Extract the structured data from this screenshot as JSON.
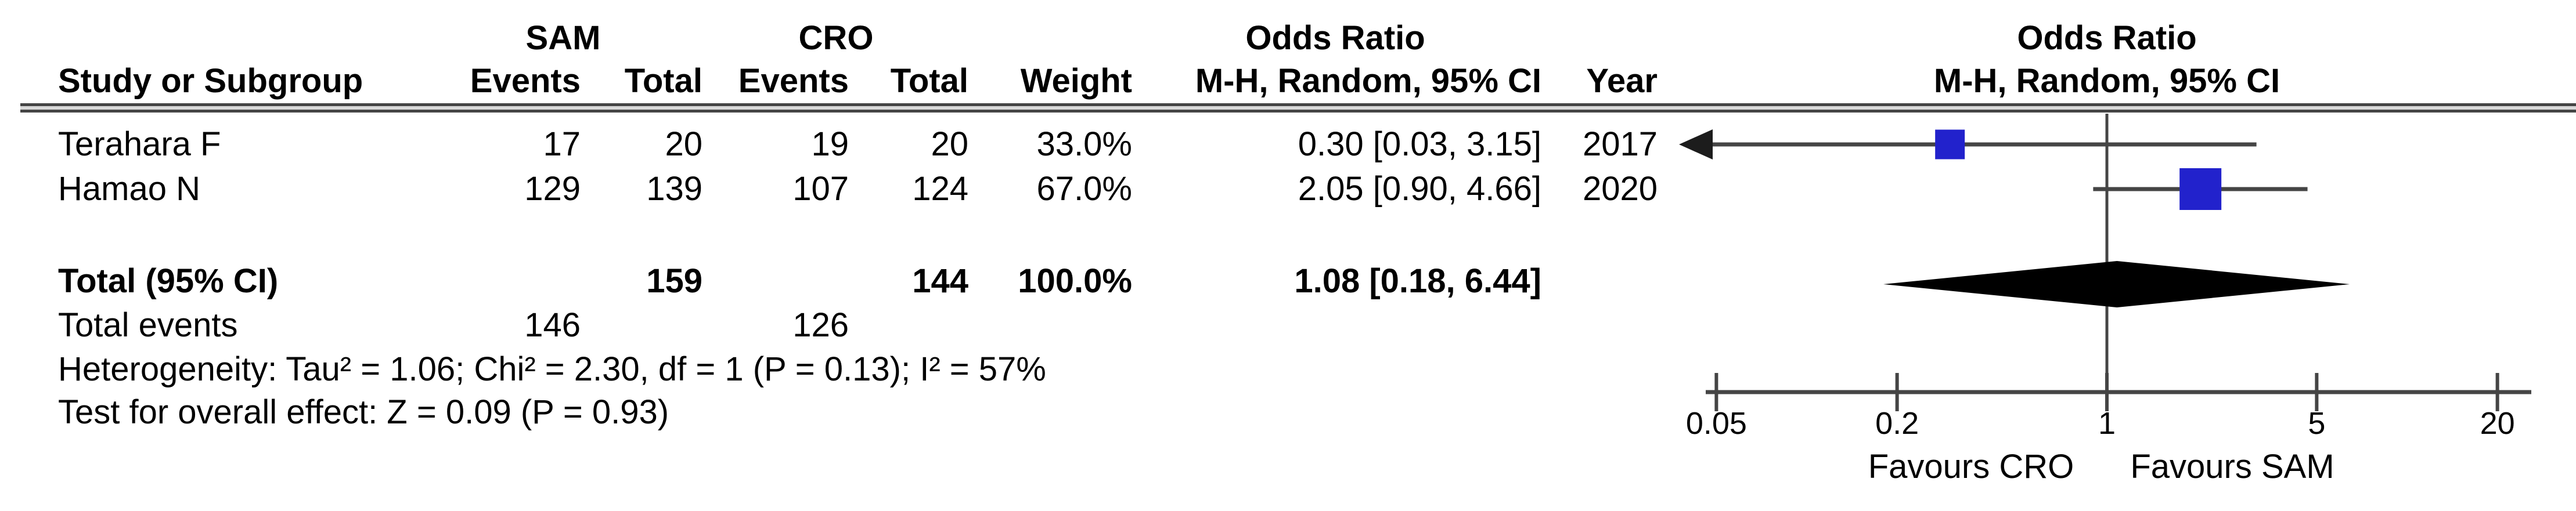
{
  "table": {
    "group_headers": {
      "group1": "SAM",
      "group2": "CRO",
      "or_col": "Odds Ratio",
      "plot_col": "Odds Ratio"
    },
    "column_headers": {
      "study": "Study or Subgroup",
      "events1": "Events",
      "total1": "Total",
      "events2": "Events",
      "total2": "Total",
      "weight": "Weight",
      "mh_ci": "M-H, Random, 95% CI",
      "year": "Year",
      "plot_mh_ci": "M-H, Random, 95% CI"
    },
    "rows": [
      {
        "study": "Terahara F",
        "e1": "17",
        "t1": "20",
        "e2": "19",
        "t2": "20",
        "weight": "33.0%",
        "or_ci": "0.30 [0.03, 3.15]",
        "year": "2017"
      },
      {
        "study": "Hamao N",
        "e1": "129",
        "t1": "139",
        "e2": "107",
        "t2": "124",
        "weight": "67.0%",
        "or_ci": "2.05 [0.90, 4.66]",
        "year": "2020"
      }
    ],
    "total_row": {
      "label": "Total (95% CI)",
      "t1": "159",
      "t2": "144",
      "weight": "100.0%",
      "or_ci": "1.08 [0.18, 6.44]"
    },
    "total_events_row": {
      "label": "Total events",
      "e1": "146",
      "e2": "126"
    },
    "heterogeneity": "Heterogeneity: Tau² = 1.06; Chi² = 2.30, df = 1 (P = 0.13); I² = 57%",
    "overall_effect": "Test for overall effect: Z = 0.09 (P = 0.93)"
  },
  "chart_data": {
    "type": "scatter",
    "subtype": "forest-plot",
    "effect_measure": "Odds Ratio, M-H, Random, 95% CI",
    "x_scale": "log",
    "axis_ticks": [
      0.05,
      0.2,
      1,
      5,
      20
    ],
    "axis_tick_labels": [
      "0.05",
      "0.2",
      "1",
      "5",
      "20"
    ],
    "axis_range": [
      0.05,
      22
    ],
    "null_line": 1,
    "studies": [
      {
        "name": "Terahara F",
        "or": 0.3,
        "ci_low": 0.03,
        "ci_high": 3.15,
        "weight_pct": 33.0,
        "year": 2017
      },
      {
        "name": "Hamao N",
        "or": 2.05,
        "ci_low": 0.9,
        "ci_high": 4.66,
        "weight_pct": 67.0,
        "year": 2020
      }
    ],
    "total": {
      "label": "Total (95% CI)",
      "or": 1.08,
      "ci_low": 0.18,
      "ci_high": 6.44,
      "weight_pct": 100.0
    },
    "footer_left": "Favours CRO",
    "footer_right": "Favours SAM",
    "marker_color": "#2222cc",
    "line_color": "#454545",
    "diamond_color": "#000000"
  }
}
